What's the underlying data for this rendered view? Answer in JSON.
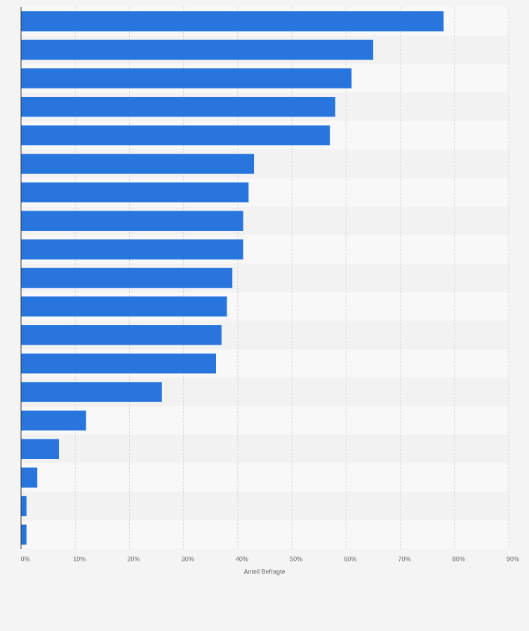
{
  "chart_data": {
    "type": "bar",
    "orientation": "horizontal",
    "x_label": "Anteil Befragte",
    "categories": [
      null,
      null,
      null,
      null,
      null,
      null,
      null,
      null,
      null,
      null,
      null,
      null,
      null,
      null,
      null,
      null,
      null,
      null,
      null
    ],
    "values": [
      78,
      65,
      61,
      58,
      57,
      43,
      42,
      41,
      41,
      39,
      38,
      37,
      36,
      26,
      12,
      7,
      3,
      1,
      1
    ],
    "color": "#2876dd",
    "xlim": [
      0,
      90
    ],
    "xticks": [
      {
        "value": 0,
        "label": "0%"
      },
      {
        "value": 10,
        "label": "10%"
      },
      {
        "value": 20,
        "label": "20%"
      },
      {
        "value": 30,
        "label": "30%"
      },
      {
        "value": 40,
        "label": "40%"
      },
      {
        "value": 50,
        "label": "50%"
      },
      {
        "value": 60,
        "label": "60%"
      },
      {
        "value": 70,
        "label": "70%"
      },
      {
        "value": 80,
        "label": "80%"
      },
      {
        "value": 90,
        "label": "90%"
      }
    ],
    "grid": true
  }
}
